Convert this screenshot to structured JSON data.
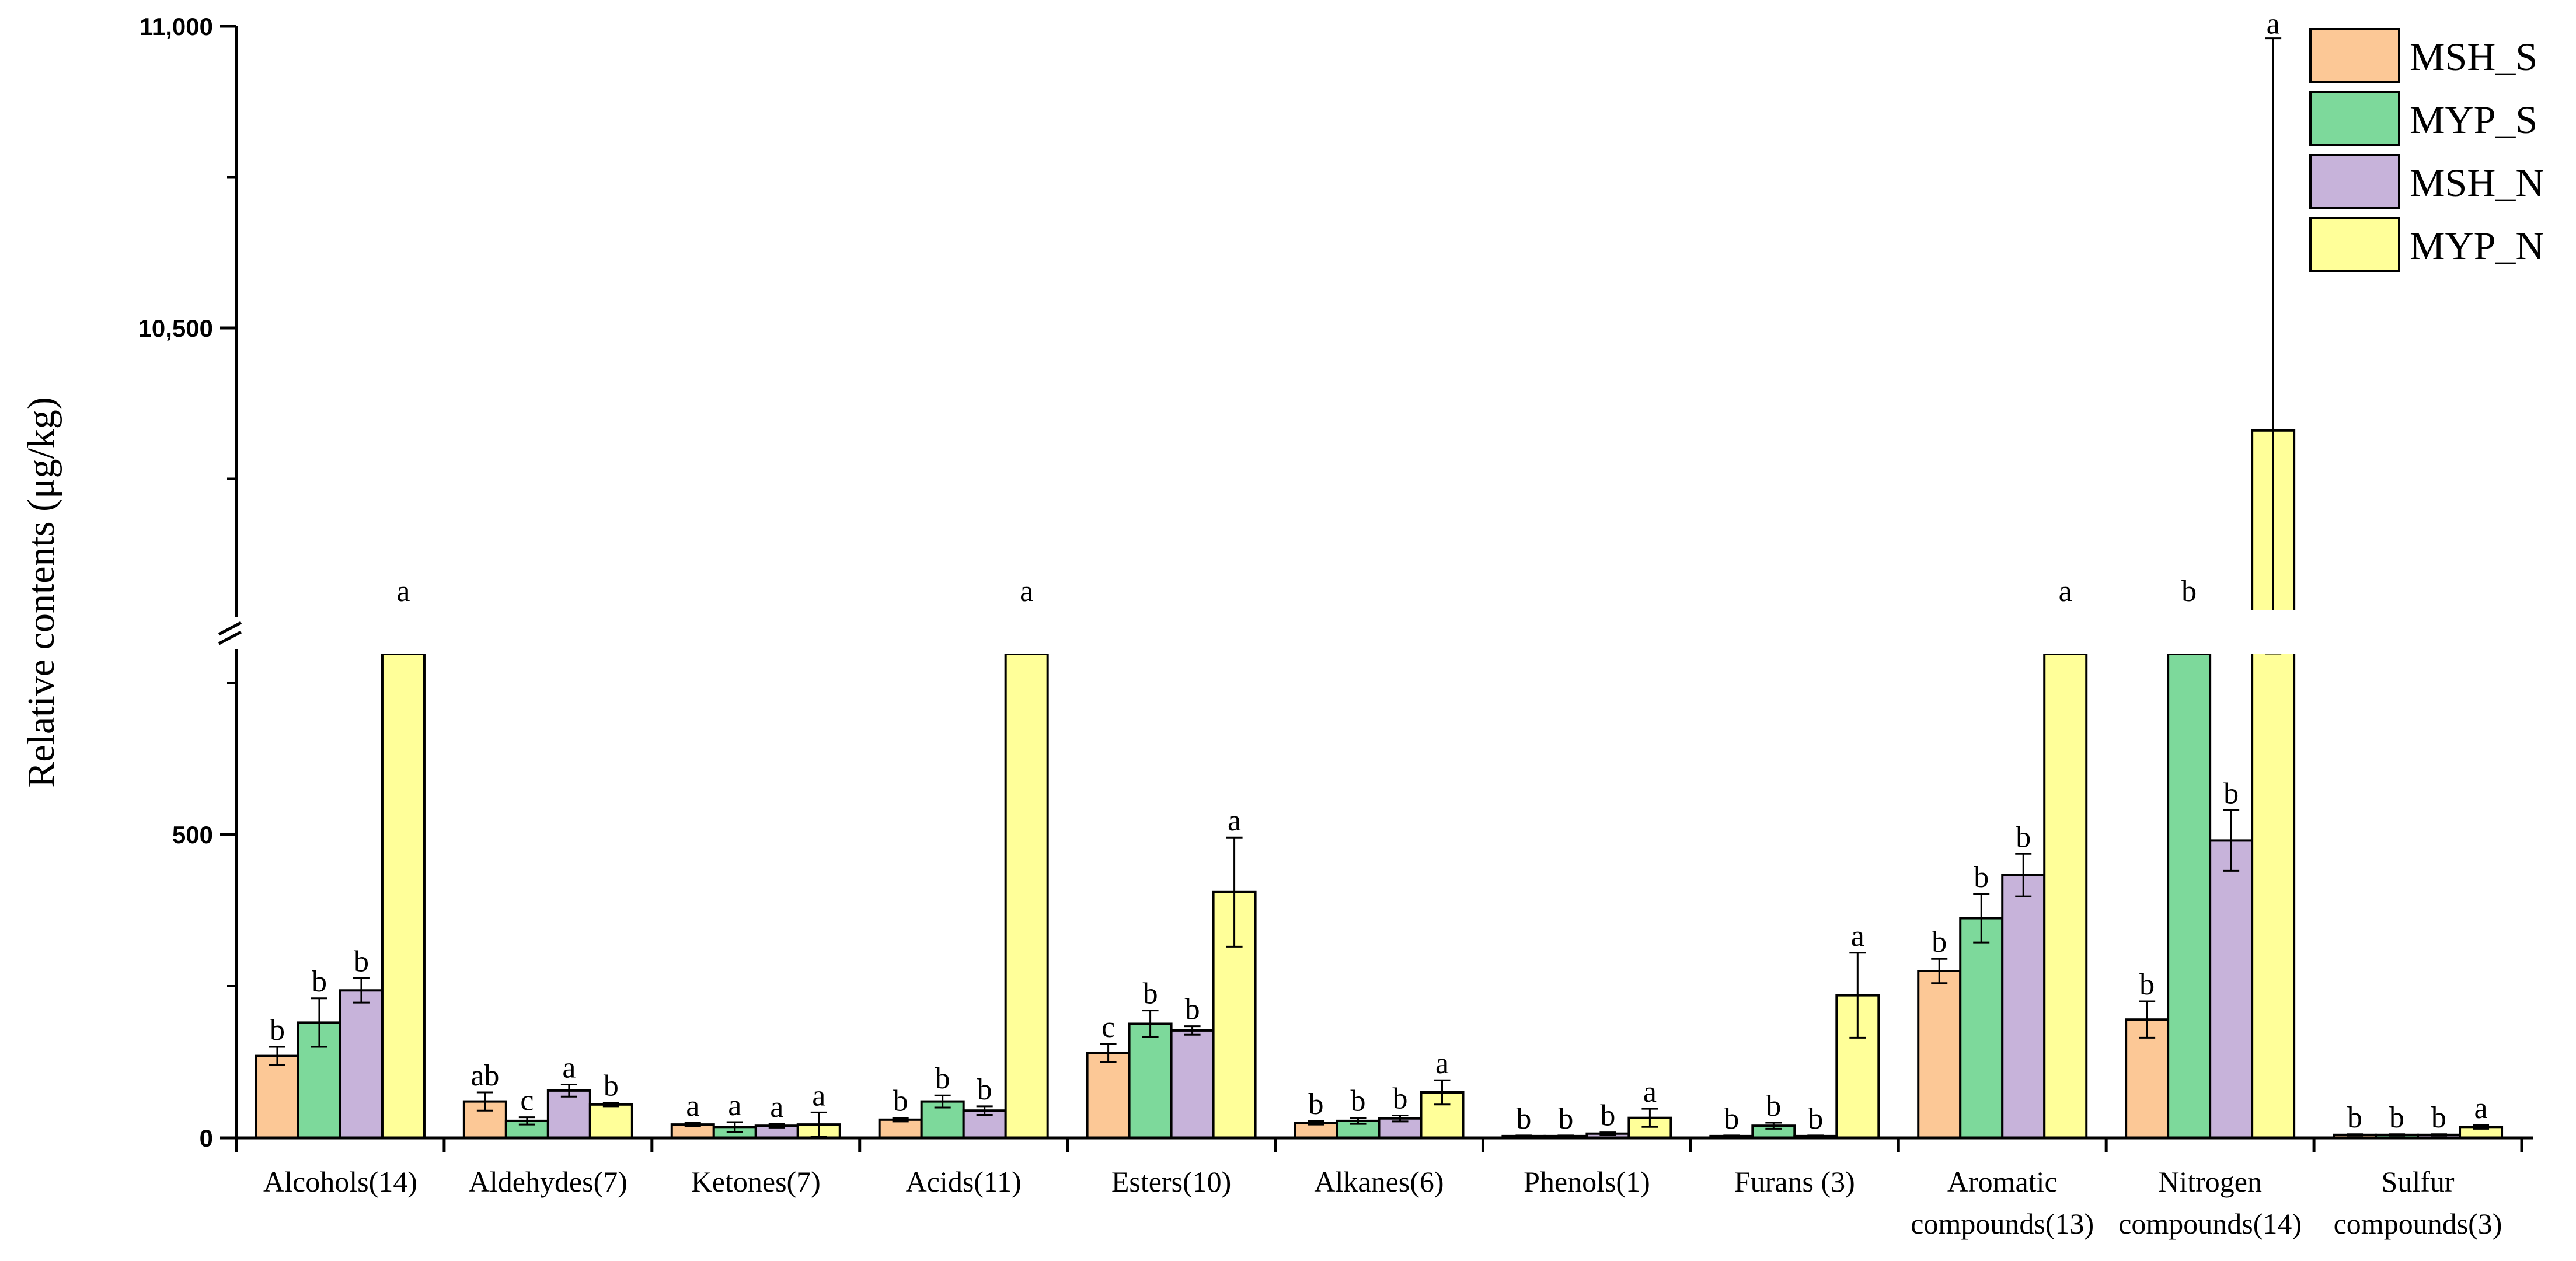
{
  "chart_data": {
    "type": "bar",
    "ylabel": "Relative contents (μg/kg)",
    "xlabel": "",
    "title": "",
    "axis_break": true,
    "lower_ylim": [
      0,
      780
    ],
    "upper_ylim": [
      9950,
      11000
    ],
    "yticks_labeled": [
      "0",
      "500",
      "10,500",
      "11,000"
    ],
    "categories": [
      [
        "Alcohols(14)"
      ],
      [
        "Aldehydes(7)"
      ],
      [
        "Ketones(7)"
      ],
      [
        "Acids(11)"
      ],
      [
        "Esters(10)"
      ],
      [
        "Alkanes(6)"
      ],
      [
        "Phenols(1)"
      ],
      [
        "Furans (3)"
      ],
      [
        "Aromatic",
        "compounds(13)"
      ],
      [
        "Nitrogen",
        "compounds(14)"
      ],
      [
        "Sulfur",
        "compounds(3)"
      ]
    ],
    "series": [
      {
        "name": "MSH_S",
        "color": "#FCC896",
        "values": [
          135,
          60,
          22,
          30,
          140,
          25,
          3,
          3,
          275,
          195,
          5
        ],
        "errors": [
          15,
          15,
          3,
          3,
          15,
          3,
          1,
          1,
          20,
          30,
          1
        ],
        "letters": [
          "b",
          "ab",
          "a",
          "b",
          "c",
          "b",
          "b",
          "b",
          "b",
          "b",
          "b"
        ]
      },
      {
        "name": "MYP_S",
        "color": "#7DD99B",
        "values": [
          190,
          28,
          18,
          60,
          188,
          28,
          3,
          20,
          362,
          850,
          5
        ],
        "errors": [
          40,
          6,
          8,
          10,
          22,
          5,
          1,
          5,
          40,
          0,
          1
        ],
        "letters": [
          "b",
          "c",
          "a",
          "b",
          "b",
          "b",
          "b",
          "b",
          "b",
          "b",
          "b"
        ]
      },
      {
        "name": "MSH_N",
        "color": "#C7B3DA",
        "values": [
          243,
          78,
          20,
          45,
          177,
          32,
          7,
          3,
          433,
          490,
          5
        ],
        "errors": [
          20,
          10,
          3,
          7,
          7,
          5,
          2,
          1,
          35,
          50,
          1
        ],
        "letters": [
          "b",
          "a",
          "a",
          "b",
          "b",
          "b",
          "b",
          "b",
          "b",
          "b",
          "b"
        ]
      },
      {
        "name": "MYP_N",
        "color": "#FFFF99",
        "values": [
          800,
          55,
          22,
          800,
          405,
          75,
          33,
          235,
          800,
          10330,
          18
        ],
        "errors": [
          0,
          3,
          20,
          0,
          90,
          20,
          15,
          70,
          0,
          650,
          3
        ],
        "letters": [
          "a",
          "b",
          "a",
          "a",
          "a",
          "a",
          "a",
          "a",
          "a",
          "a",
          "a"
        ]
      }
    ],
    "legend_position": "top-right",
    "grid": false
  }
}
